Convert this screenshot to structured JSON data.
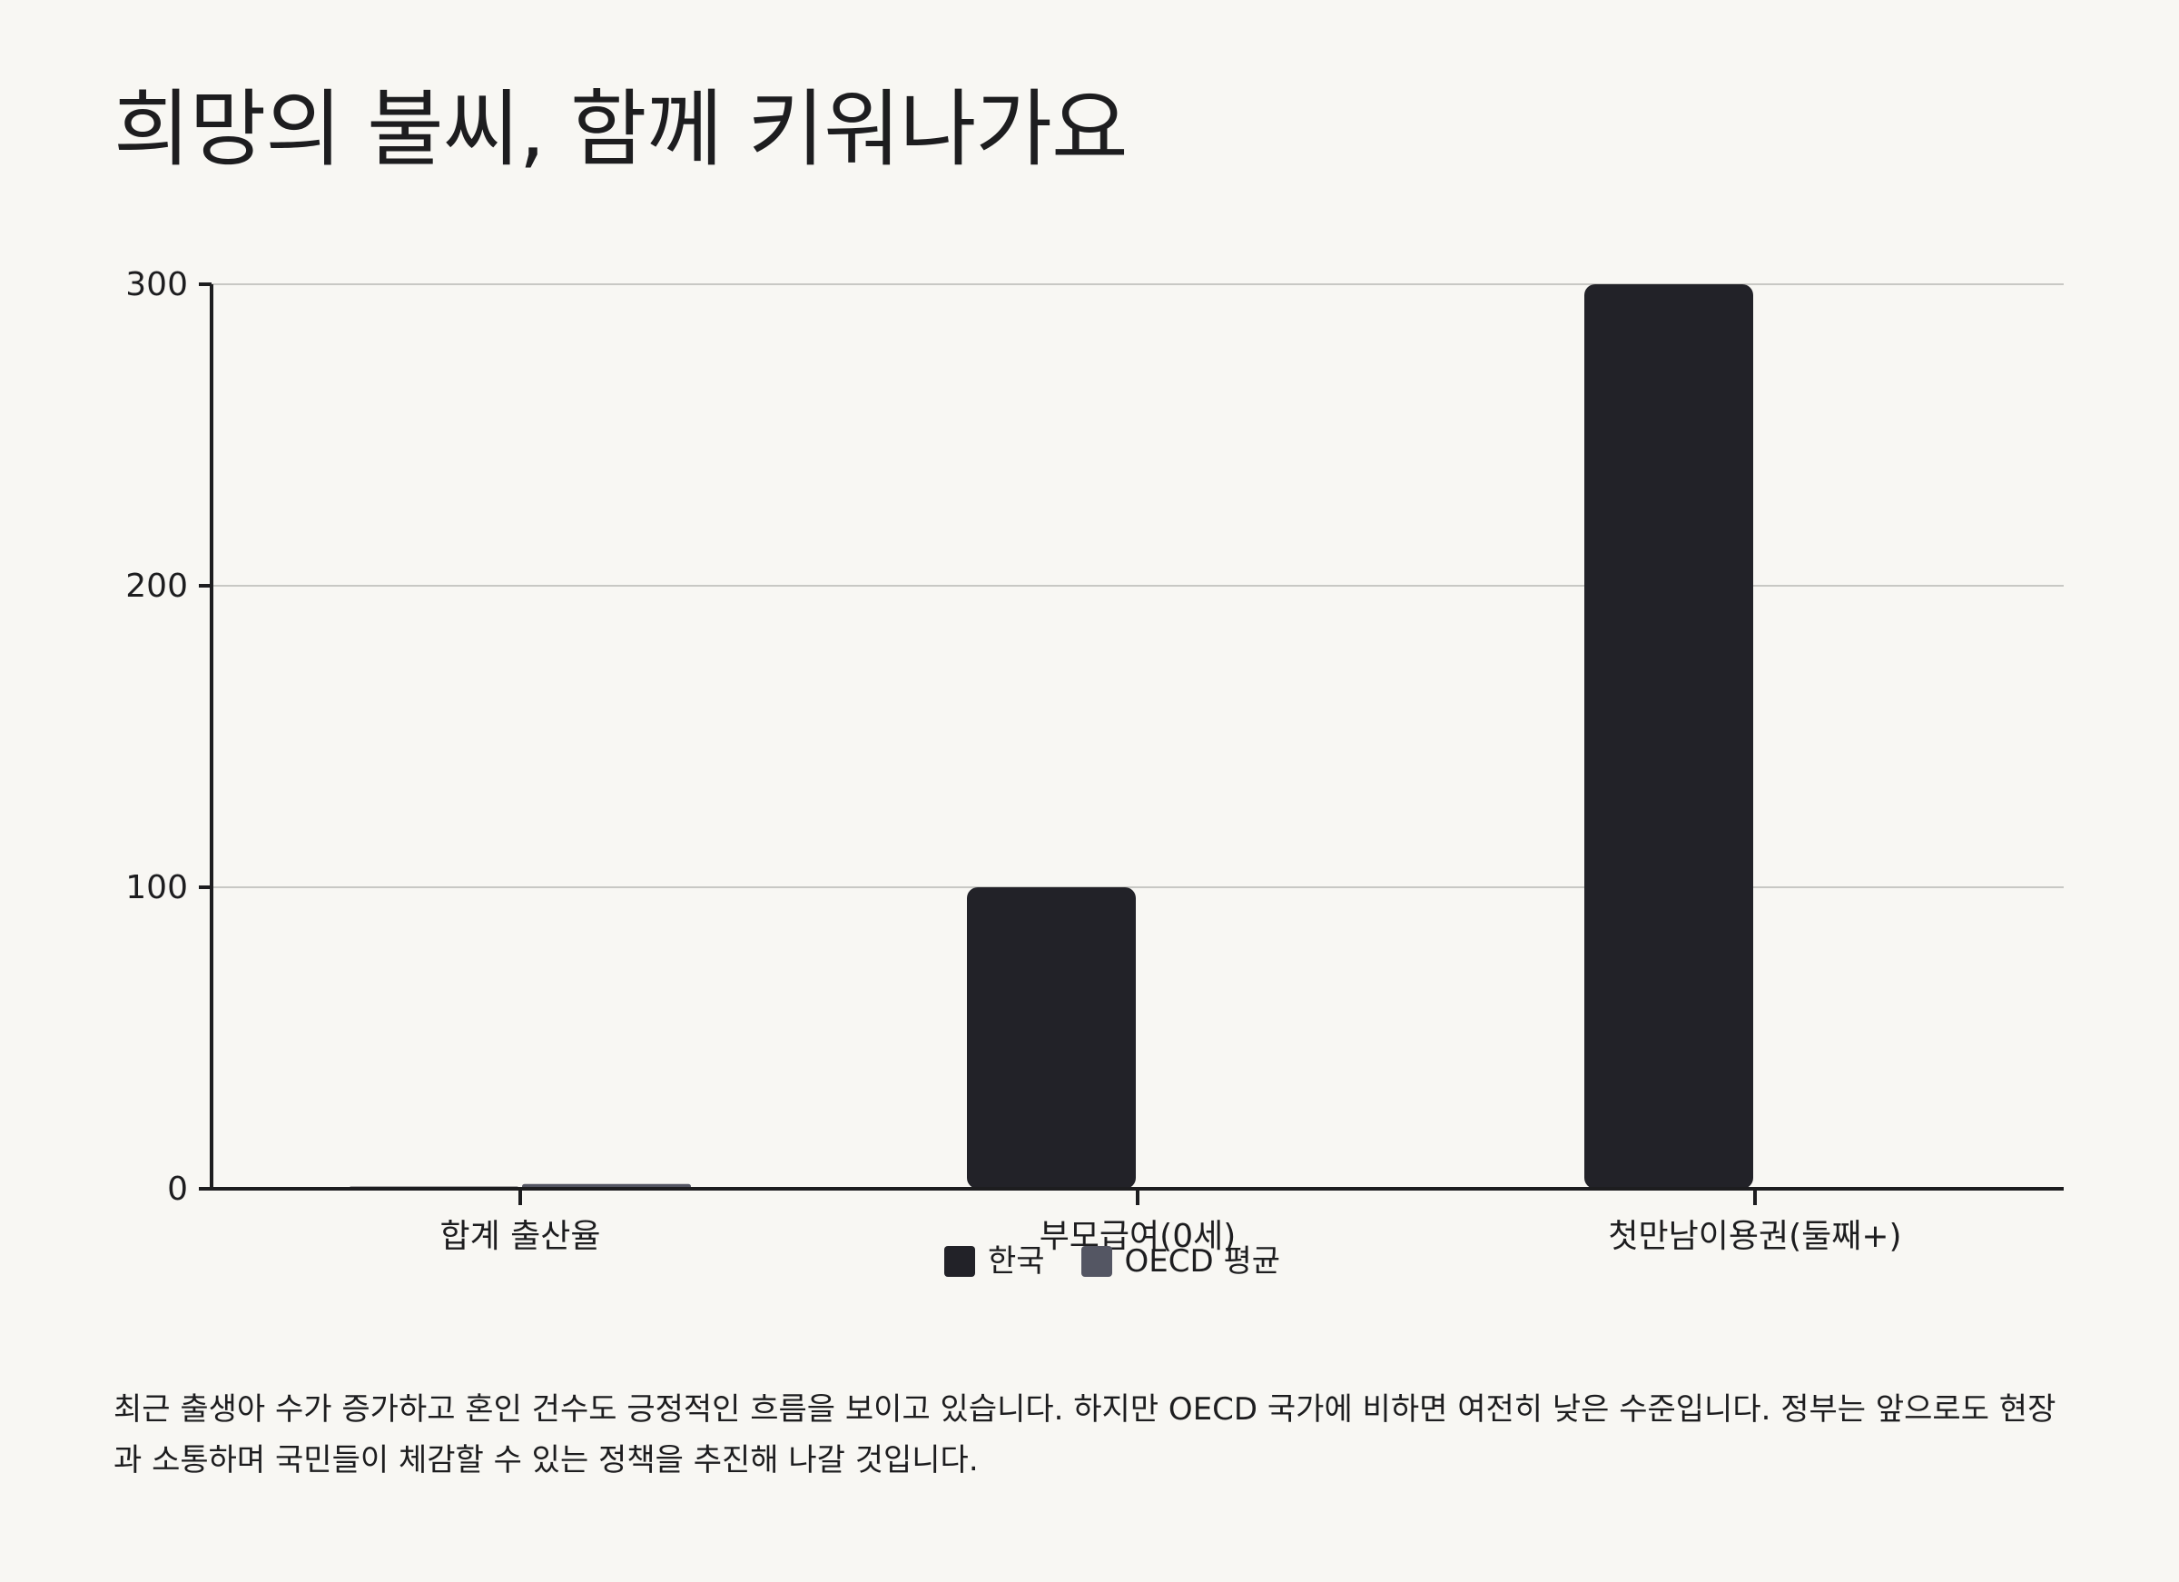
{
  "title": "희망의 불씨, 함께 키워나가요",
  "caption": "최근 출생아 수가 증가하고 혼인 건수도 긍정적인 흐름을 보이고 있습니다. 하지만 OECD 국가에 비하면 여전히 낮은 수준입니다. 정부는 앞으로도 현장과 소통하며 국민들이 체감할 수 있는 정책을 추진해 나갈 것입니다.",
  "colors": {
    "korea": "#222228",
    "oecd": "#545663",
    "grid": "#c8c8c4",
    "axis": "#1d1d1f"
  },
  "chart_data": {
    "type": "bar",
    "categories": [
      "합계 출산율",
      "부모급여(0세)",
      "첫만남이용권(둘째+)"
    ],
    "series": [
      {
        "name": "한국",
        "values": [
          0.72,
          100,
          300
        ]
      },
      {
        "name": "OECD 평균",
        "values": [
          1.58,
          0,
          0
        ]
      }
    ],
    "ylim": [
      0,
      300
    ],
    "yticks": [
      0,
      100,
      200,
      300
    ],
    "xlabel": "",
    "ylabel": "",
    "grid": true,
    "legend": "bottom-center"
  }
}
